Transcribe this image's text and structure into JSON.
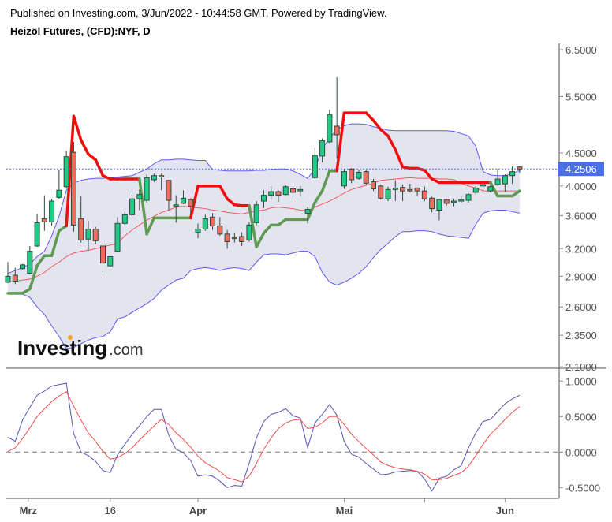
{
  "header": {
    "published": "Published on Investing.com, 3/Jun/2022 - 10:44:58 GMT, Powered by TradingView.",
    "title": "Heizöl Futures, (CFD):NYF, D"
  },
  "logo": {
    "text": "Investing",
    "suffix": ".com"
  },
  "colors": {
    "up": "#1ecb87",
    "down": "#f26b5e",
    "candle_outline": "#2f4a3b",
    "band_fill": "#e4e4f1",
    "band_line": "#5b5bf2",
    "basis_line": "#f25a5a",
    "supertrend_up": "#5e9a4f",
    "supertrend_down": "#f20d0d",
    "osc_fast": "#5656b8",
    "osc_slow": "#f44f4f",
    "last_price": "#4a6fe3"
  },
  "chart_data": [
    {
      "type": "candlestick",
      "scale": "log",
      "ylim": [
        2.1,
        6.5
      ],
      "y_ticks": [
        "6.5000",
        "5.5000",
        "4.5000",
        "4.0000",
        "3.6000",
        "3.2000",
        "2.9000",
        "2.6000",
        "2.3500",
        "2.1000"
      ],
      "y_tick_values": [
        6.5,
        5.5,
        4.5,
        4.0,
        3.6,
        3.2,
        2.9,
        2.6,
        2.35,
        2.1
      ],
      "last_price": 4.2506,
      "last_price_label": "4.2506",
      "ohlc": [
        [
          2.84,
          3.05,
          2.83,
          2.9
        ],
        [
          2.91,
          2.99,
          2.82,
          2.85
        ],
        [
          2.98,
          3.03,
          2.97,
          3.02
        ],
        [
          2.93,
          3.23,
          2.92,
          3.17
        ],
        [
          3.23,
          3.62,
          3.22,
          3.51
        ],
        [
          3.56,
          3.87,
          3.41,
          3.52
        ],
        [
          3.52,
          3.82,
          3.47,
          3.79
        ],
        [
          3.84,
          4.24,
          3.82,
          3.94
        ],
        [
          3.99,
          4.53,
          3.96,
          4.44
        ],
        [
          4.51,
          4.68,
          3.4,
          3.48
        ],
        [
          3.56,
          3.86,
          3.27,
          3.3
        ],
        [
          3.31,
          3.53,
          3.18,
          3.43
        ],
        [
          3.43,
          3.46,
          3.25,
          3.29
        ],
        [
          3.23,
          3.27,
          2.94,
          3.04
        ],
        [
          3.01,
          3.11,
          3.0,
          3.11
        ],
        [
          3.17,
          3.58,
          3.16,
          3.5
        ],
        [
          3.5,
          3.65,
          3.48,
          3.61
        ],
        [
          3.61,
          3.88,
          3.59,
          3.82
        ],
        [
          3.82,
          3.95,
          3.67,
          3.88
        ],
        [
          3.8,
          4.17,
          3.77,
          4.12
        ],
        [
          4.09,
          4.18,
          4.06,
          4.15
        ],
        [
          4.15,
          4.18,
          3.94,
          4.13
        ],
        [
          4.08,
          4.09,
          3.67,
          3.8
        ],
        [
          3.72,
          3.87,
          3.51,
          3.74
        ],
        [
          3.76,
          3.94,
          3.75,
          3.83
        ],
        [
          3.81,
          3.83,
          3.62,
          3.72
        ],
        [
          3.39,
          3.5,
          3.32,
          3.43
        ],
        [
          3.43,
          3.61,
          3.41,
          3.56
        ],
        [
          3.58,
          3.63,
          3.42,
          3.47
        ],
        [
          3.47,
          3.58,
          3.35,
          3.37
        ],
        [
          3.37,
          3.42,
          3.2,
          3.28
        ],
        [
          3.33,
          3.38,
          3.27,
          3.32
        ],
        [
          3.34,
          3.39,
          3.23,
          3.28
        ],
        [
          3.3,
          3.51,
          3.28,
          3.48
        ],
        [
          3.51,
          3.79,
          3.48,
          3.74
        ],
        [
          3.79,
          3.94,
          3.7,
          3.87
        ],
        [
          3.87,
          4.0,
          3.81,
          3.92
        ],
        [
          3.92,
          3.94,
          3.78,
          3.87
        ],
        [
          3.88,
          4.01,
          3.87,
          3.99
        ],
        [
          3.96,
          4.0,
          3.85,
          3.91
        ],
        [
          3.93,
          4.0,
          3.86,
          3.95
        ],
        [
          3.63,
          3.71,
          3.5,
          3.68
        ],
        [
          4.12,
          4.58,
          4.1,
          4.46
        ],
        [
          4.45,
          4.74,
          4.35,
          4.7
        ],
        [
          4.68,
          5.25,
          4.66,
          5.16
        ],
        [
          4.95,
          5.89,
          4.41,
          4.8
        ],
        [
          4.0,
          4.25,
          3.96,
          4.21
        ],
        [
          4.25,
          4.26,
          4.04,
          4.09
        ],
        [
          4.11,
          4.24,
          4.09,
          4.2
        ],
        [
          4.21,
          4.23,
          4.01,
          4.04
        ],
        [
          4.06,
          4.1,
          3.93,
          3.96
        ],
        [
          4.0,
          4.02,
          3.81,
          3.83
        ],
        [
          3.82,
          3.99,
          3.79,
          3.95
        ],
        [
          3.95,
          4.08,
          3.79,
          3.97
        ],
        [
          3.98,
          4.02,
          3.79,
          3.93
        ],
        [
          3.95,
          4.03,
          3.91,
          3.93
        ],
        [
          3.97,
          3.98,
          3.86,
          3.93
        ],
        [
          3.93,
          3.99,
          3.79,
          3.82
        ],
        [
          3.83,
          3.85,
          3.64,
          3.69
        ],
        [
          3.67,
          3.82,
          3.54,
          3.81
        ],
        [
          3.81,
          3.82,
          3.73,
          3.76
        ],
        [
          3.77,
          3.82,
          3.72,
          3.79
        ],
        [
          3.79,
          3.86,
          3.77,
          3.81
        ],
        [
          3.8,
          3.9,
          3.77,
          3.88
        ],
        [
          3.91,
          4.0,
          3.87,
          3.97
        ],
        [
          4.0,
          4.03,
          3.93,
          4.02
        ],
        [
          3.93,
          4.01,
          3.91,
          3.99
        ],
        [
          4.02,
          4.25,
          4.0,
          4.1
        ],
        [
          4.03,
          4.17,
          3.92,
          4.15
        ],
        [
          4.15,
          4.29,
          4.03,
          4.21
        ],
        [
          4.28,
          4.29,
          4.19,
          4.25
        ]
      ],
      "bollinger_upper": [
        2.93,
        2.96,
        2.99,
        3.03,
        3.11,
        3.17,
        3.35,
        3.59,
        3.94,
        4.04,
        4.08,
        4.1,
        4.11,
        4.11,
        4.12,
        4.13,
        4.14,
        4.15,
        4.2,
        4.25,
        4.33,
        4.39,
        4.39,
        4.4,
        4.4,
        4.39,
        4.38,
        4.38,
        4.24,
        4.23,
        4.22,
        4.22,
        4.22,
        4.22,
        4.23,
        4.23,
        4.24,
        4.25,
        4.25,
        4.22,
        4.17,
        4.11,
        4.25,
        4.57,
        4.74,
        4.89,
        4.96,
        4.99,
        4.99,
        4.98,
        4.94,
        4.91,
        4.88,
        4.87,
        4.87,
        4.87,
        4.87,
        4.87,
        4.87,
        4.87,
        4.87,
        4.86,
        4.82,
        4.78,
        4.61,
        4.21,
        4.16,
        4.15,
        4.15,
        4.18,
        4.23
      ],
      "bollinger_lower": [
        2.73,
        2.72,
        2.72,
        2.69,
        2.6,
        2.53,
        2.43,
        2.34,
        2.24,
        2.25,
        2.28,
        2.31,
        2.33,
        2.34,
        2.38,
        2.49,
        2.51,
        2.55,
        2.59,
        2.63,
        2.68,
        2.76,
        2.81,
        2.86,
        2.88,
        2.96,
        2.98,
        2.99,
        2.98,
        2.96,
        2.98,
        2.99,
        2.98,
        2.96,
        3.05,
        3.13,
        3.14,
        3.14,
        3.13,
        3.15,
        3.17,
        3.17,
        3.11,
        2.94,
        2.84,
        2.81,
        2.84,
        2.88,
        2.93,
        3.0,
        3.1,
        3.19,
        3.26,
        3.34,
        3.4,
        3.4,
        3.41,
        3.41,
        3.4,
        3.37,
        3.35,
        3.34,
        3.33,
        3.32,
        3.49,
        3.63,
        3.66,
        3.67,
        3.67,
        3.65,
        3.63
      ],
      "bollinger_basis": [
        2.84,
        2.85,
        2.86,
        2.87,
        2.9,
        2.94,
        3.0,
        3.05,
        3.11,
        3.15,
        3.17,
        3.18,
        3.2,
        3.22,
        3.24,
        3.26,
        3.35,
        3.42,
        3.48,
        3.54,
        3.59,
        3.64,
        3.67,
        3.71,
        3.72,
        3.71,
        3.7,
        3.69,
        3.67,
        3.66,
        3.64,
        3.63,
        3.62,
        3.64,
        3.66,
        3.67,
        3.7,
        3.71,
        3.7,
        3.69,
        3.67,
        3.66,
        3.71,
        3.75,
        3.79,
        3.84,
        3.9,
        3.95,
        3.98,
        4.01,
        4.04,
        4.08,
        4.09,
        4.1,
        4.11,
        4.12,
        4.11,
        4.11,
        4.11,
        4.1,
        4.1,
        4.09,
        4.04,
        4.0,
        3.97,
        3.93,
        3.93,
        3.93,
        3.93,
        3.93,
        3.93
      ],
      "supertrend": [
        2.73,
        2.73,
        2.73,
        2.77,
        3.01,
        3.12,
        3.12,
        3.41,
        3.47,
        5.13,
        4.71,
        4.48,
        4.39,
        4.15,
        4.1,
        4.1,
        4.1,
        4.1,
        4.1,
        3.37,
        3.57,
        3.57,
        3.57,
        3.57,
        3.57,
        3.57,
        4.0,
        4.0,
        4.0,
        4.0,
        3.82,
        3.74,
        3.73,
        3.73,
        3.22,
        3.38,
        3.48,
        3.48,
        3.55,
        3.55,
        3.55,
        3.55,
        3.77,
        3.93,
        4.22,
        4.22,
        5.19,
        5.19,
        5.19,
        5.19,
        5.05,
        4.89,
        4.78,
        4.55,
        4.28,
        4.26,
        4.26,
        4.23,
        4.1,
        4.05,
        4.05,
        4.05,
        4.05,
        4.05,
        4.05,
        4.05,
        4.05,
        3.86,
        3.86,
        3.86,
        3.93
      ],
      "supertrend_direction": [
        1,
        1,
        1,
        1,
        1,
        1,
        1,
        1,
        1,
        -1,
        -1,
        -1,
        -1,
        -1,
        -1,
        -1,
        -1,
        -1,
        -1,
        1,
        1,
        1,
        1,
        1,
        1,
        1,
        -1,
        -1,
        -1,
        -1,
        -1,
        -1,
        -1,
        -1,
        1,
        1,
        1,
        1,
        1,
        1,
        1,
        1,
        1,
        1,
        1,
        1,
        -1,
        -1,
        -1,
        -1,
        -1,
        -1,
        -1,
        -1,
        -1,
        -1,
        -1,
        -1,
        -1,
        -1,
        -1,
        -1,
        -1,
        -1,
        -1,
        -1,
        -1,
        1,
        1,
        1,
        1
      ]
    },
    {
      "type": "line",
      "ylim": [
        -0.62,
        1.1
      ],
      "y_ticks": [
        "1.0000",
        "0.5000",
        "0.0000",
        "-0.5000"
      ],
      "y_tick_values": [
        1.0,
        0.5,
        0.0,
        -0.5
      ],
      "zero_line": "dashed",
      "series": [
        {
          "values": [
            0.21,
            0.15,
            0.45,
            0.63,
            0.8,
            0.86,
            0.93,
            0.95,
            0.97,
            0.26,
            0.0,
            -0.05,
            -0.13,
            -0.26,
            -0.29,
            -0.04,
            0.11,
            0.25,
            0.37,
            0.5,
            0.6,
            0.6,
            0.24,
            0.04,
            -0.01,
            -0.12,
            -0.34,
            -0.32,
            -0.34,
            -0.41,
            -0.5,
            -0.47,
            -0.48,
            -0.16,
            0.2,
            0.43,
            0.53,
            0.56,
            0.61,
            0.51,
            0.48,
            0.06,
            0.41,
            0.53,
            0.67,
            0.52,
            0.15,
            -0.03,
            -0.07,
            -0.16,
            -0.24,
            -0.32,
            -0.31,
            -0.28,
            -0.27,
            -0.26,
            -0.27,
            -0.38,
            -0.55,
            -0.37,
            -0.34,
            -0.25,
            -0.19,
            0.06,
            0.27,
            0.43,
            0.46,
            0.57,
            0.68,
            0.75,
            0.8
          ]
        },
        {
          "values": [
            0.01,
            0.06,
            0.19,
            0.34,
            0.5,
            0.61,
            0.71,
            0.79,
            0.85,
            0.65,
            0.45,
            0.27,
            0.15,
            0.01,
            -0.1,
            -0.08,
            -0.02,
            0.06,
            0.17,
            0.27,
            0.37,
            0.46,
            0.39,
            0.27,
            0.18,
            0.07,
            -0.06,
            -0.15,
            -0.21,
            -0.27,
            -0.36,
            -0.39,
            -0.42,
            -0.34,
            -0.16,
            0.04,
            0.2,
            0.33,
            0.41,
            0.45,
            0.46,
            0.33,
            0.35,
            0.41,
            0.5,
            0.5,
            0.39,
            0.25,
            0.15,
            0.05,
            -0.04,
            -0.14,
            -0.19,
            -0.22,
            -0.24,
            -0.25,
            -0.27,
            -0.31,
            -0.39,
            -0.39,
            -0.37,
            -0.33,
            -0.29,
            -0.2,
            -0.05,
            0.11,
            0.25,
            0.35,
            0.46,
            0.56,
            0.64
          ]
        }
      ]
    }
  ],
  "x_axis": {
    "labels": [
      "Mrz",
      "16",
      "Apr",
      "Mai",
      "",
      "Jun"
    ],
    "label_bar_index": [
      3,
      14,
      26,
      46,
      57,
      68
    ],
    "bold": [
      true,
      false,
      true,
      true,
      false,
      true
    ]
  }
}
